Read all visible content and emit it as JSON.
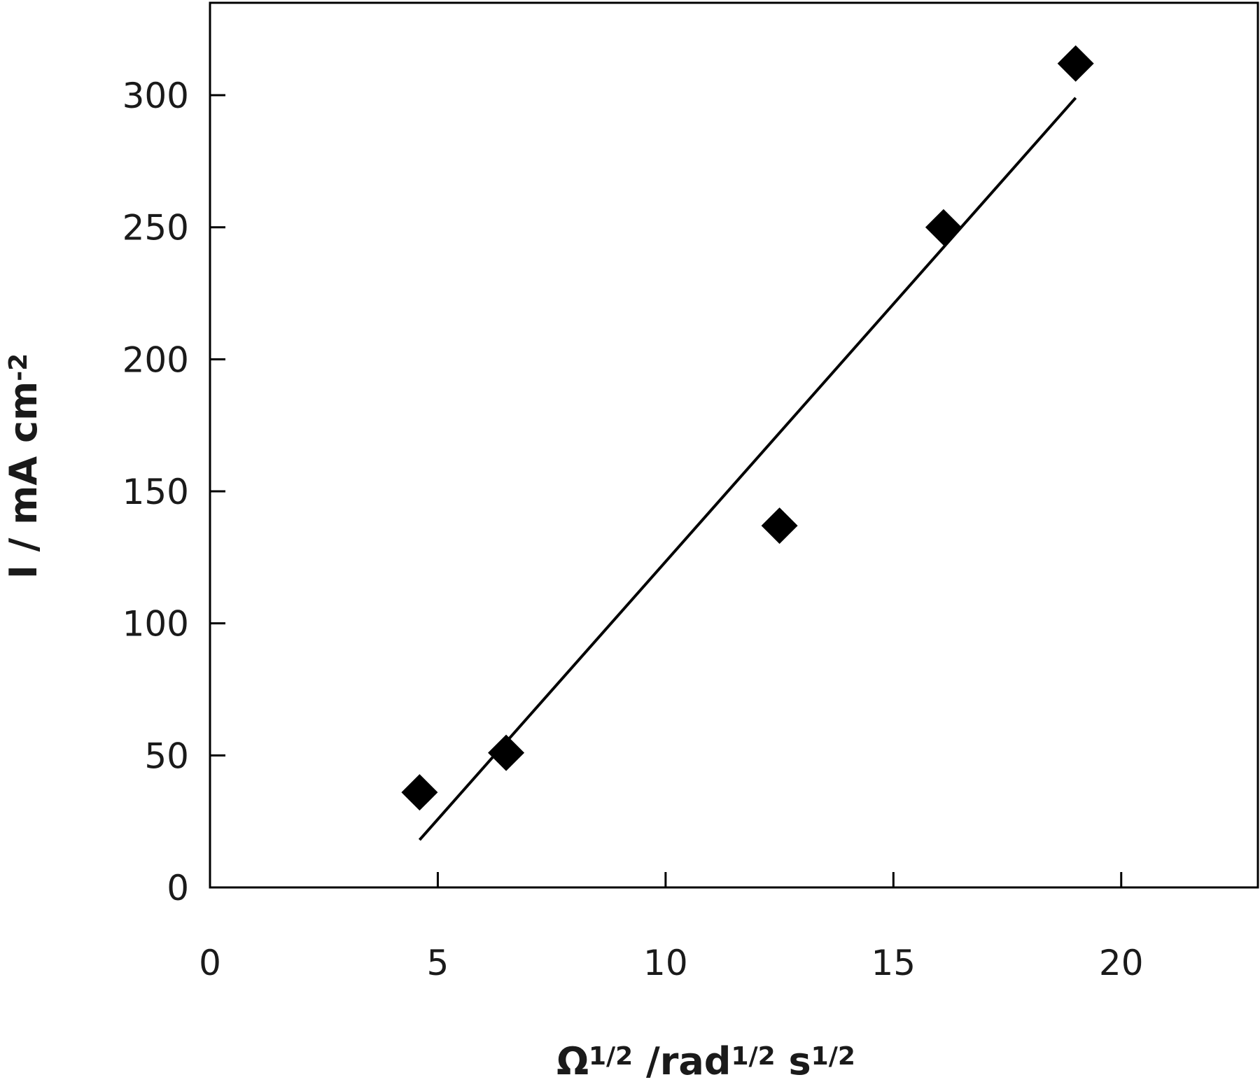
{
  "chart_data": {
    "type": "scatter",
    "x": [
      4.6,
      6.5,
      12.5,
      16.1,
      19.0
    ],
    "y": [
      36,
      51,
      137,
      250,
      312
    ],
    "fit_line": {
      "x": [
        4.6,
        19.0
      ],
      "y": [
        18,
        299
      ]
    },
    "xlim": [
      0,
      23
    ],
    "ylim": [
      0,
      335
    ],
    "xticks": [
      0,
      5,
      10,
      15,
      20
    ],
    "yticks": [
      0,
      50,
      100,
      150,
      200,
      250,
      300
    ],
    "xlabel": {
      "parts": [
        {
          "text": "Ω",
          "sup": false
        },
        {
          "text": "1/2",
          "sup": true
        },
        {
          "text": " /rad",
          "sup": false
        },
        {
          "text": "1/2",
          "sup": true
        },
        {
          "text": " s",
          "sup": false
        },
        {
          "text": "1/2",
          "sup": true
        }
      ]
    },
    "ylabel": {
      "parts": [
        {
          "text": "I / mA cm",
          "sup": false
        },
        {
          "text": "-2",
          "sup": true
        }
      ]
    },
    "marker": "diamond",
    "marker_color": "#000000",
    "line_color": "#000000",
    "grid": false,
    "legend": "none"
  }
}
